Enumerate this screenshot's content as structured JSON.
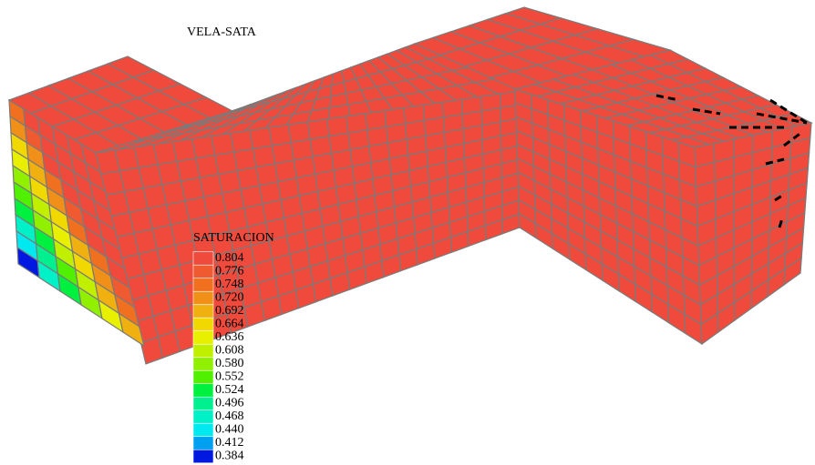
{
  "title": "VELA-SATA",
  "legend": {
    "title": "SATURACION",
    "items": [
      {
        "label": "0.804",
        "color": "#f04a3c"
      },
      {
        "label": "0.776",
        "color": "#f05a30"
      },
      {
        "label": "0.748",
        "color": "#f07020"
      },
      {
        "label": "0.720",
        "color": "#f09018"
      },
      {
        "label": "0.692",
        "color": "#f0b010"
      },
      {
        "label": "0.664",
        "color": "#f0d800"
      },
      {
        "label": "0.636",
        "color": "#e8f000"
      },
      {
        "label": "0.608",
        "color": "#c0f000"
      },
      {
        "label": "0.580",
        "color": "#90f000"
      },
      {
        "label": "0.552",
        "color": "#50f000"
      },
      {
        "label": "0.524",
        "color": "#00f040"
      },
      {
        "label": "0.496",
        "color": "#00f090"
      },
      {
        "label": "0.468",
        "color": "#00f0c8"
      },
      {
        "label": "0.440",
        "color": "#00e8f0"
      },
      {
        "label": "0.412",
        "color": "#00a0f0"
      },
      {
        "label": "0.384",
        "color": "#0018e0"
      }
    ]
  }
}
